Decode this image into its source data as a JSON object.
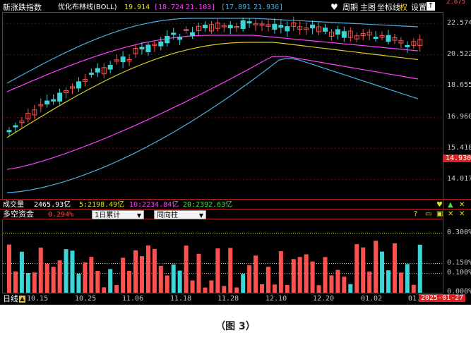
{
  "header": {
    "index_name": "新涨跌指数",
    "indicator_name": "优化布林线(BOLL)",
    "v1": "19.914",
    "v2": "[18.724",
    "v3": "21.103]",
    "v4": "[17.891",
    "v5": "21.936]",
    "menu": [
      "周期",
      "主图",
      "坐标线",
      "权",
      "设置"
    ],
    "heart_icon": "heart-icon",
    "up_icon": "up-arrow-icon"
  },
  "price_axis": {
    "labels": [
      "22.574",
      "20.522",
      "18.655",
      "16.960",
      "15.418",
      "14.017"
    ],
    "top_label": "2.675",
    "current_price": "14.930"
  },
  "volume_line": {
    "label": "成交量",
    "value": "2465.93亿",
    "ma5": "5:2198.49亿",
    "ma10": "10:2234.84亿",
    "ma20": "20:2392.63亿"
  },
  "fund_panel": {
    "title": "多空资金",
    "value": "0.294%",
    "select1": "1日累计",
    "select2": "同向柱",
    "axis": [
      "0.300%",
      "0.150%",
      "0.100%",
      "0.000%"
    ]
  },
  "bottom_bar": {
    "period": "日线",
    "dates": [
      "10.15",
      "10.25",
      "11.06",
      "11.18",
      "11.28",
      "12.10",
      "12.20",
      "01.02",
      "01."
    ],
    "current_date": "2025-01-27"
  },
  "caption": "（图 3）",
  "colors": {
    "up": "#ff5050",
    "down": "#3cd5d5",
    "upper": "#4ab0e0",
    "mid": "#ff40ff",
    "ma": "#d8d020"
  }
}
